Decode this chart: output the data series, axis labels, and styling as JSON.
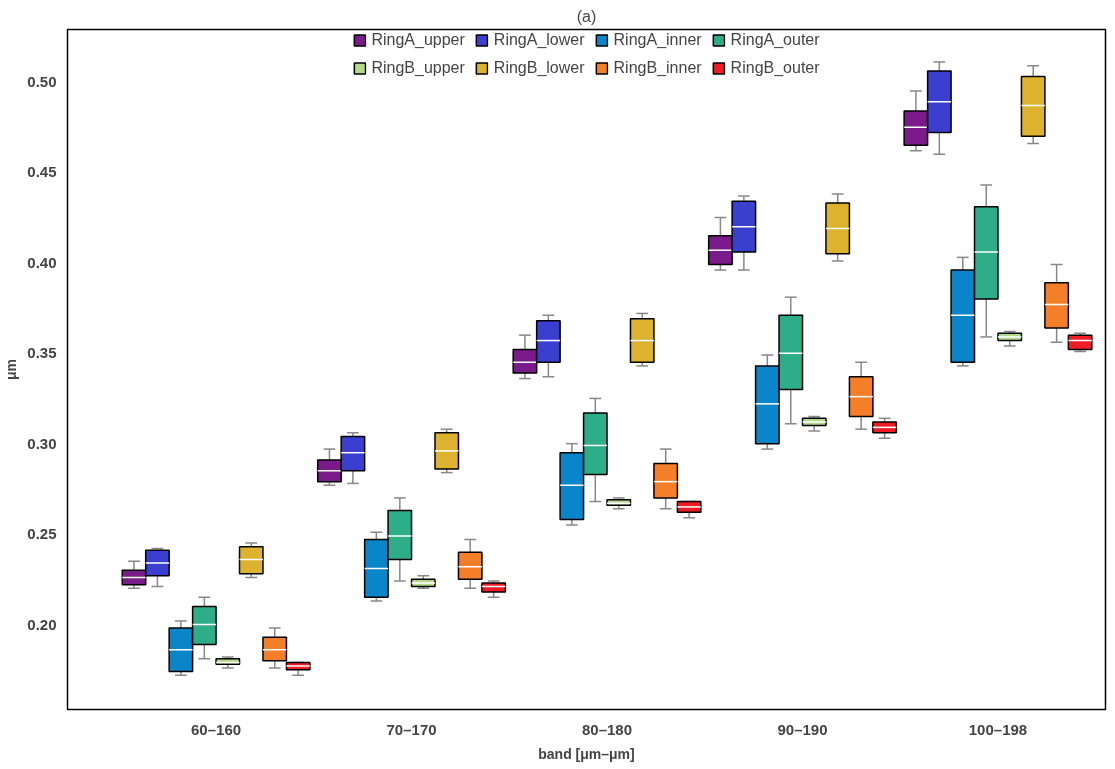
{
  "chart_data": {
    "type": "box",
    "title": "(a)",
    "xlabel": "band [μm–μm]",
    "ylabel": "μm",
    "categories": [
      "60–160",
      "70–170",
      "80–180",
      "90–190",
      "100–198"
    ],
    "ylim": [
      0.153,
      0.529
    ],
    "yticks": [
      {
        "value": 0.2,
        "label": "0.20"
      },
      {
        "value": 0.25,
        "label": "0.25"
      },
      {
        "value": 0.3,
        "label": "0.30"
      },
      {
        "value": 0.35,
        "label": "0.35"
      },
      {
        "value": 0.4,
        "label": "0.40"
      },
      {
        "value": 0.45,
        "label": "0.45"
      },
      {
        "value": 0.5,
        "label": "0.50"
      }
    ],
    "grid": false,
    "legend": "top",
    "series": [
      {
        "name": "RingA_upper",
        "color": "#7b1a8a",
        "boxes": [
          {
            "low": 0.22,
            "q1": 0.222,
            "median": 0.226,
            "q3": 0.23,
            "high": 0.235
          },
          {
            "low": 0.277,
            "q1": 0.279,
            "median": 0.285,
            "q3": 0.291,
            "high": 0.297
          },
          {
            "low": 0.336,
            "q1": 0.339,
            "median": 0.345,
            "q3": 0.352,
            "high": 0.36
          },
          {
            "low": 0.396,
            "q1": 0.399,
            "median": 0.407,
            "q3": 0.415,
            "high": 0.425
          },
          {
            "low": 0.462,
            "q1": 0.465,
            "median": 0.475,
            "q3": 0.484,
            "high": 0.495
          }
        ]
      },
      {
        "name": "RingA_lower",
        "color": "#3a3fcf",
        "boxes": [
          {
            "low": 0.221,
            "q1": 0.227,
            "median": 0.234,
            "q3": 0.241,
            "high": 0.242
          },
          {
            "low": 0.278,
            "q1": 0.285,
            "median": 0.295,
            "q3": 0.304,
            "high": 0.306
          },
          {
            "low": 0.337,
            "q1": 0.345,
            "median": 0.357,
            "q3": 0.368,
            "high": 0.371
          },
          {
            "low": 0.396,
            "q1": 0.406,
            "median": 0.42,
            "q3": 0.434,
            "high": 0.437
          },
          {
            "low": 0.46,
            "q1": 0.472,
            "median": 0.489,
            "q3": 0.506,
            "high": 0.511
          }
        ]
      },
      {
        "name": "RingA_inner",
        "color": "#0a85c9",
        "boxes": [
          {
            "low": 0.172,
            "q1": 0.174,
            "median": 0.186,
            "q3": 0.198,
            "high": 0.202
          },
          {
            "low": 0.213,
            "q1": 0.215,
            "median": 0.231,
            "q3": 0.247,
            "high": 0.251
          },
          {
            "low": 0.255,
            "q1": 0.258,
            "median": 0.277,
            "q3": 0.295,
            "high": 0.3
          },
          {
            "low": 0.297,
            "q1": 0.3,
            "median": 0.322,
            "q3": 0.343,
            "high": 0.349
          },
          {
            "low": 0.343,
            "q1": 0.345,
            "median": 0.371,
            "q3": 0.396,
            "high": 0.403
          }
        ]
      },
      {
        "name": "RingA_outer",
        "color": "#2eae88",
        "boxes": [
          {
            "low": 0.181,
            "q1": 0.189,
            "median": 0.2,
            "q3": 0.21,
            "high": 0.215
          },
          {
            "low": 0.224,
            "q1": 0.236,
            "median": 0.249,
            "q3": 0.263,
            "high": 0.27
          },
          {
            "low": 0.268,
            "q1": 0.283,
            "median": 0.299,
            "q3": 0.317,
            "high": 0.325
          },
          {
            "low": 0.311,
            "q1": 0.33,
            "median": 0.35,
            "q3": 0.371,
            "high": 0.381
          },
          {
            "low": 0.359,
            "q1": 0.38,
            "median": 0.406,
            "q3": 0.431,
            "high": 0.443
          }
        ]
      },
      {
        "name": "RingB_upper",
        "color": "#b5d98a",
        "boxes": [
          {
            "low": 0.176,
            "q1": 0.178,
            "median": 0.179,
            "q3": 0.181,
            "high": 0.182
          },
          {
            "low": 0.22,
            "q1": 0.221,
            "median": 0.223,
            "q3": 0.225,
            "high": 0.227
          },
          {
            "low": 0.264,
            "q1": 0.266,
            "median": 0.267,
            "q3": 0.269,
            "high": 0.27
          },
          {
            "low": 0.307,
            "q1": 0.31,
            "median": 0.312,
            "q3": 0.314,
            "high": 0.315
          },
          {
            "low": 0.354,
            "q1": 0.357,
            "median": 0.359,
            "q3": 0.361,
            "high": 0.362
          }
        ]
      },
      {
        "name": "RingB_lower",
        "color": "#dcb22e",
        "boxes": [
          {
            "low": 0.226,
            "q1": 0.228,
            "median": 0.236,
            "q3": 0.243,
            "high": 0.245
          },
          {
            "low": 0.284,
            "q1": 0.286,
            "median": 0.296,
            "q3": 0.306,
            "high": 0.308
          },
          {
            "low": 0.343,
            "q1": 0.345,
            "median": 0.357,
            "q3": 0.369,
            "high": 0.372
          },
          {
            "low": 0.401,
            "q1": 0.405,
            "median": 0.419,
            "q3": 0.433,
            "high": 0.438
          },
          {
            "low": 0.466,
            "q1": 0.47,
            "median": 0.487,
            "q3": 0.503,
            "high": 0.509
          }
        ]
      },
      {
        "name": "RingB_inner",
        "color": "#f57f28",
        "boxes": [
          {
            "low": 0.176,
            "q1": 0.18,
            "median": 0.186,
            "q3": 0.193,
            "high": 0.198
          },
          {
            "low": 0.22,
            "q1": 0.225,
            "median": 0.232,
            "q3": 0.24,
            "high": 0.247
          },
          {
            "low": 0.264,
            "q1": 0.27,
            "median": 0.279,
            "q3": 0.289,
            "high": 0.297
          },
          {
            "low": 0.308,
            "q1": 0.315,
            "median": 0.326,
            "q3": 0.337,
            "high": 0.345
          },
          {
            "low": 0.356,
            "q1": 0.364,
            "median": 0.377,
            "q3": 0.389,
            "high": 0.399
          }
        ]
      },
      {
        "name": "RingB_outer",
        "color": "#ee1c24",
        "boxes": [
          {
            "low": 0.172,
            "q1": 0.175,
            "median": 0.177,
            "q3": 0.179,
            "high": 0.179
          },
          {
            "low": 0.215,
            "q1": 0.218,
            "median": 0.221,
            "q3": 0.223,
            "high": 0.224
          },
          {
            "low": 0.259,
            "q1": 0.262,
            "median": 0.265,
            "q3": 0.268,
            "high": 0.268
          },
          {
            "low": 0.303,
            "q1": 0.306,
            "median": 0.309,
            "q3": 0.312,
            "high": 0.314
          },
          {
            "low": 0.351,
            "q1": 0.352,
            "median": 0.357,
            "q3": 0.36,
            "high": 0.361
          }
        ]
      }
    ]
  }
}
